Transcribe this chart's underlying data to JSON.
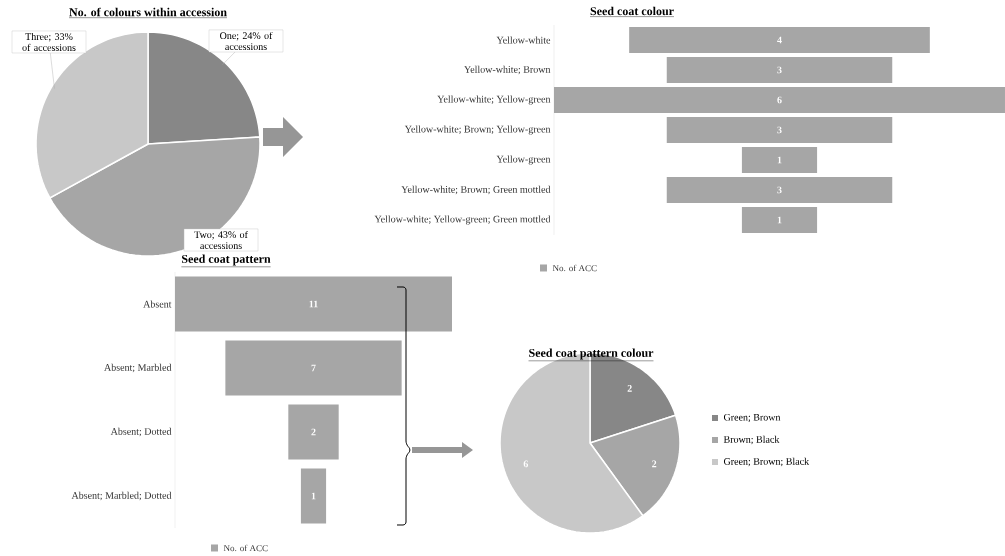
{
  "chart_data": [
    {
      "type": "pie",
      "title": "No. of colours within accession",
      "categories": [
        "One; 24% of accessions",
        "Two; 43% of accessions",
        "Three; 33% of accessions"
      ],
      "values": [
        24,
        43,
        33
      ],
      "colors": [
        "#878787",
        "#a6a6a6",
        "#c8c8c8"
      ]
    },
    {
      "type": "other",
      "title": "Seed coat colour",
      "categories": [
        "Yellow-white",
        "Yellow-white; Brown",
        "Yellow-white; Yellow-green",
        "Yellow-white; Brown; Yellow-green",
        "Yellow-green",
        "Yellow-white; Brown; Green mottled",
        "Yellow-white; Yellow-green; Green mottled"
      ],
      "series": [
        {
          "name": "No. of ACC",
          "color": "#a6a6a6",
          "values": [
            4,
            3,
            6,
            3,
            1,
            3,
            1
          ]
        }
      ],
      "data_labels": true,
      "legend": "bottom"
    },
    {
      "type": "other",
      "title": "Seed coat pattern",
      "categories": [
        "Absent",
        "Absent; Marbled",
        "Absent; Dotted",
        "Absent; Marbled; Dotted"
      ],
      "series": [
        {
          "name": "No. of ACC",
          "color": "#a6a6a6",
          "values": [
            11,
            7,
            2,
            1
          ]
        }
      ],
      "data_labels": true,
      "legend": "bottom"
    },
    {
      "type": "pie",
      "title": "Seed coat pattern colour",
      "categories": [
        "Green; Brown",
        "Brown; Black",
        "Green; Brown; Black"
      ],
      "values": [
        2,
        2,
        6
      ],
      "colors": [
        "#878787",
        "#a6a6a6",
        "#c8c8c8"
      ],
      "data_labels": true,
      "legend": "right"
    }
  ]
}
